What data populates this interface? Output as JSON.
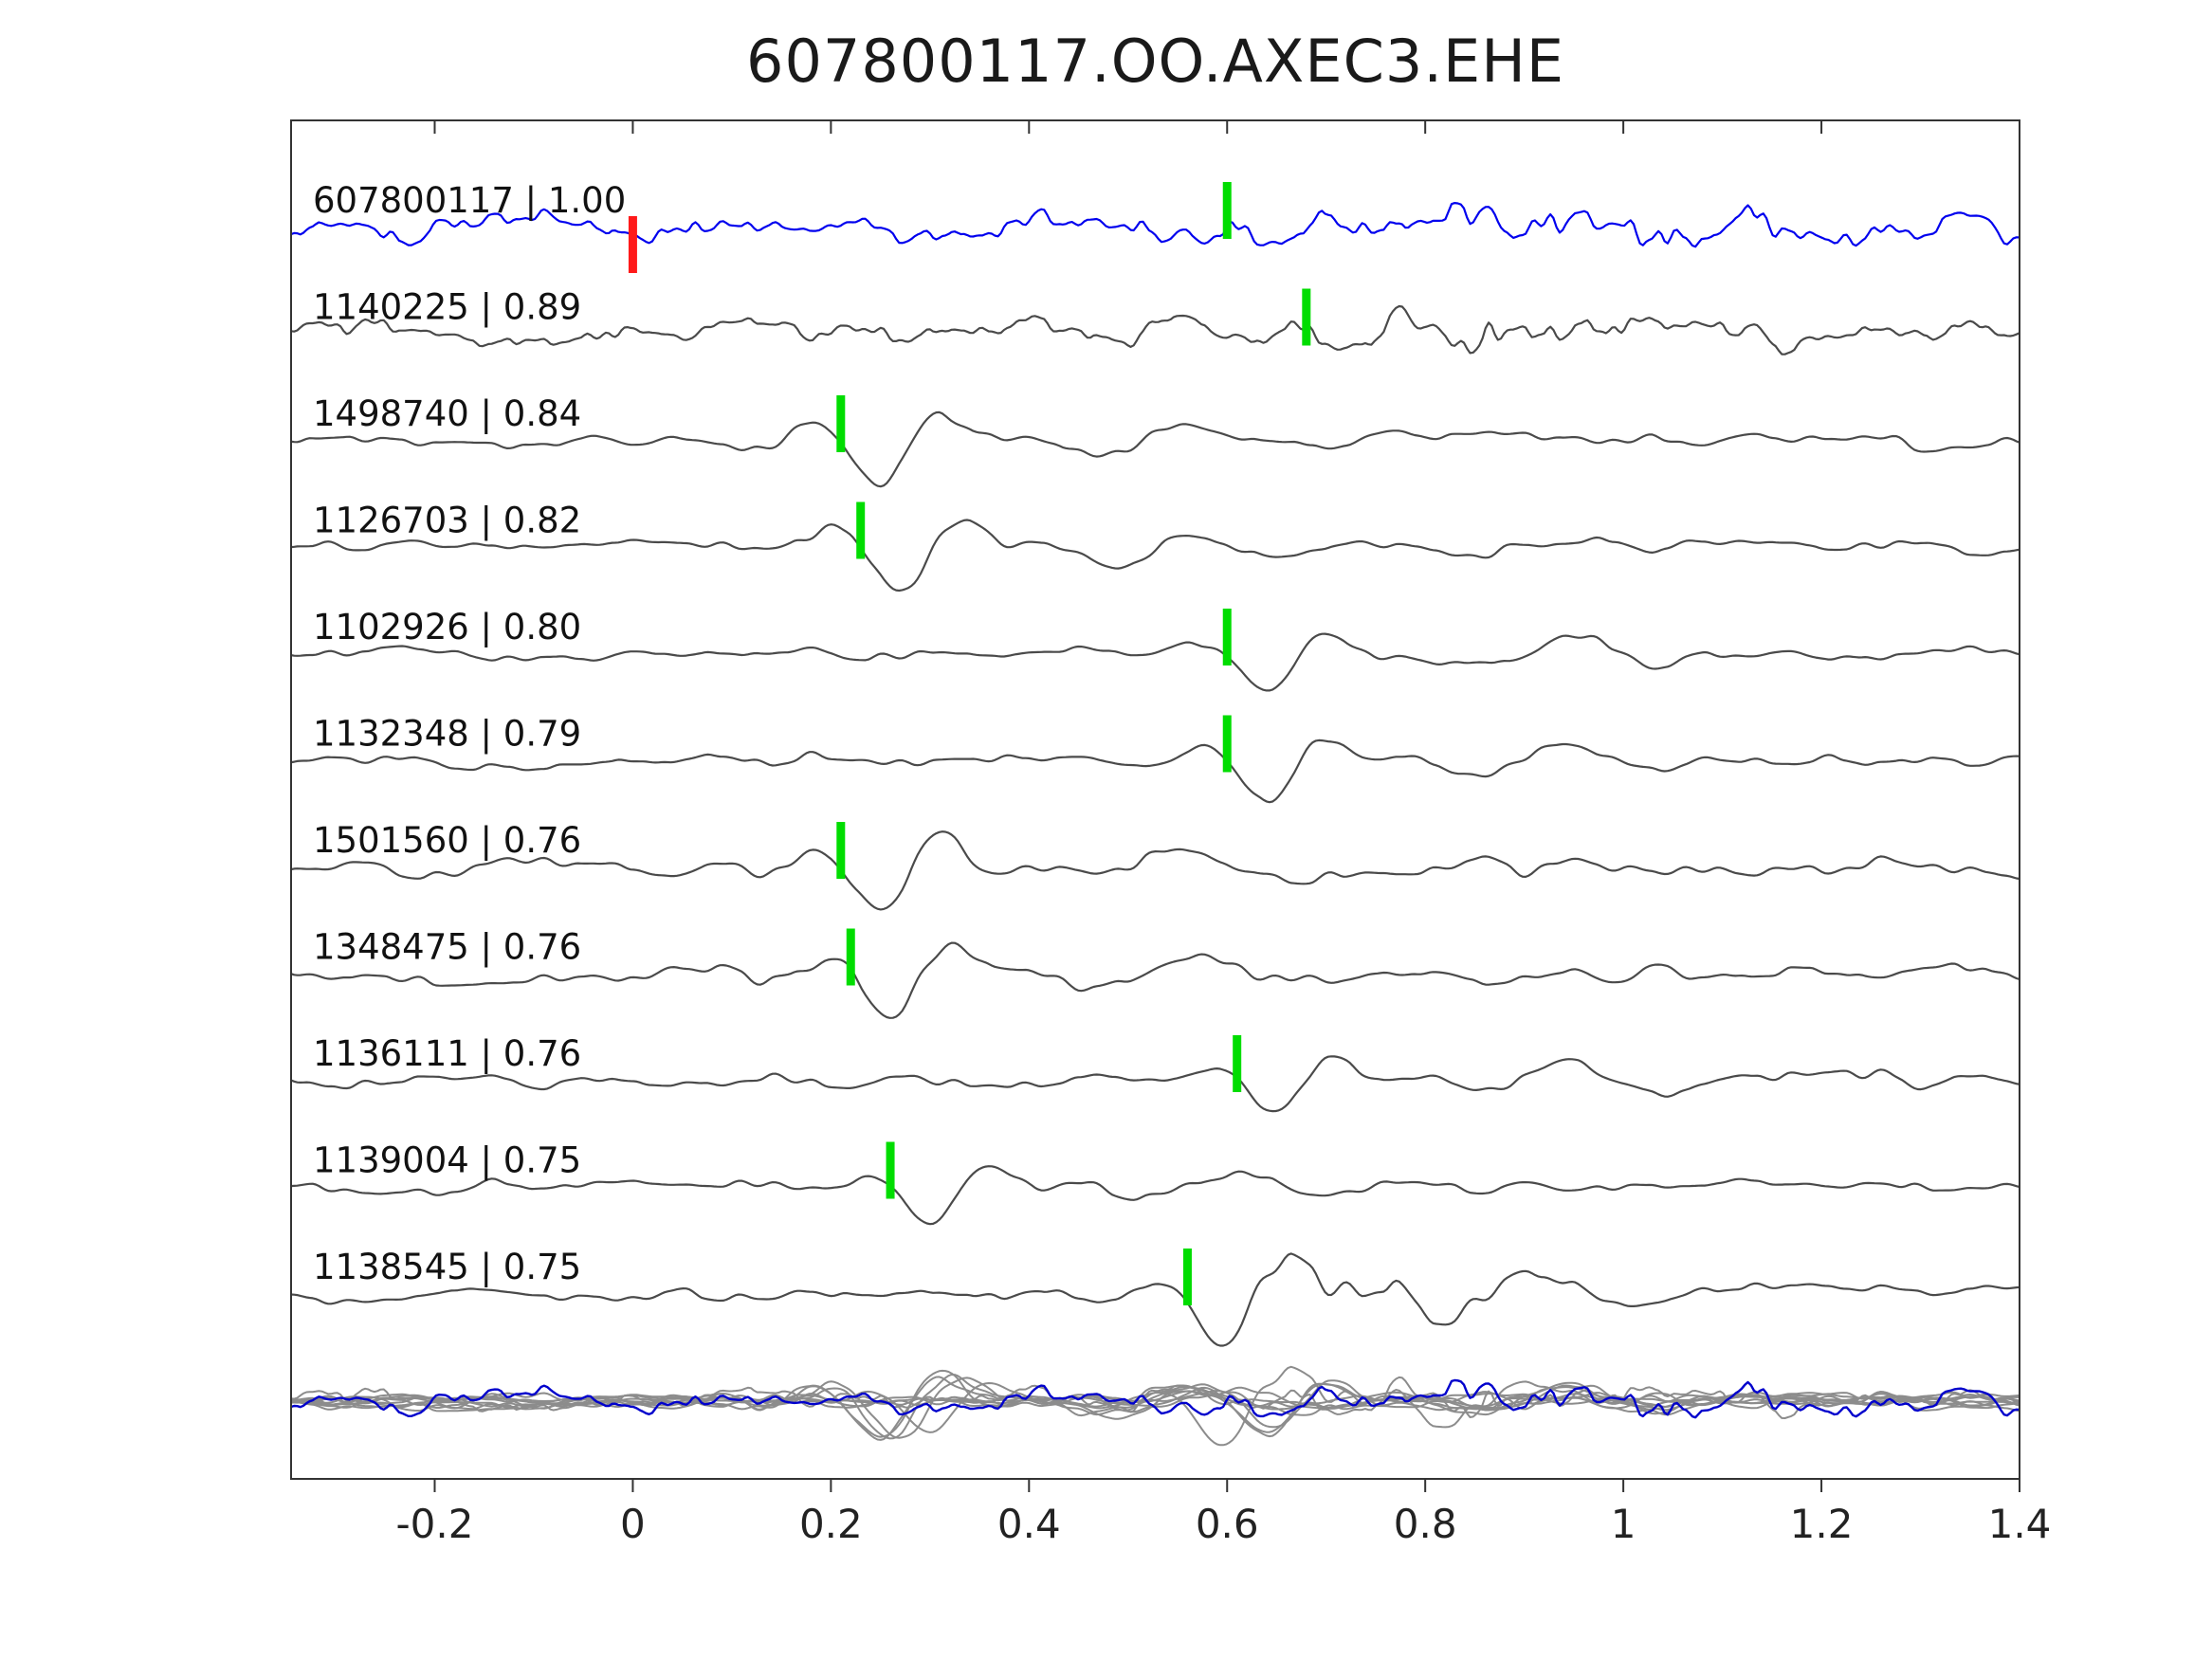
{
  "title": "607800117.OO.AXEC3.EHE",
  "chart_data": {
    "type": "line",
    "title": "607800117.OO.AXEC3.EHE",
    "xlabel": "",
    "ylabel": "",
    "grid": false,
    "legend": "none",
    "xlim": [
      -0.345,
      1.4
    ],
    "x_ticks": [
      -0.2,
      0,
      0.2,
      0.4,
      0.6,
      0.8,
      1.0,
      1.2,
      1.4
    ],
    "x_tick_labels": [
      "-0.2",
      "0",
      "0.2",
      "0.4",
      "0.6",
      "0.8",
      "1",
      "1.2",
      "1.4"
    ],
    "colors": {
      "template_trace": "#0000ee",
      "detection_trace": "#4a4a4a",
      "pick_green": "#00dd00",
      "pick_red": "#ff1a1a",
      "overlay_gray": "#8c8c8c",
      "overlay_blue": "#0000cc",
      "axis": "#333333"
    },
    "series": [
      {
        "id": "607800117",
        "corr": "1.00",
        "label": "607800117 | 1.00",
        "role": "template",
        "picks": [
          {
            "x": 0.0,
            "color": "#ff1a1a"
          },
          {
            "x": 0.6,
            "color": "#00dd00"
          }
        ],
        "seed": 3,
        "noise_amp": 13,
        "hf": true,
        "boost": {
          "center": 0.88,
          "width": 0.33,
          "gain": 1.0
        },
        "event": {
          "x": 0.6,
          "amp": 18
        }
      },
      {
        "id": "1140225",
        "corr": "0.89",
        "label": "1140225 | 0.89",
        "role": "detection",
        "picks": [
          {
            "x": 0.68,
            "color": "#00dd00"
          }
        ],
        "seed": 7,
        "noise_amp": 10,
        "hf": true,
        "boost": {
          "center": 0.85,
          "width": 0.3,
          "gain": 0.9
        },
        "event": {
          "x": 0.68,
          "amp": 32
        }
      },
      {
        "id": "1498740",
        "corr": "0.84",
        "label": "1498740 | 0.84",
        "role": "detection",
        "picks": [
          {
            "x": 0.21,
            "color": "#00dd00"
          }
        ],
        "seed": 11,
        "noise_amp": 8,
        "hf": false,
        "boost": null,
        "event": {
          "x": 0.21,
          "amp": 42
        }
      },
      {
        "id": "1126703",
        "corr": "0.82",
        "label": "1126703 | 0.82",
        "role": "detection",
        "picks": [
          {
            "x": 0.23,
            "color": "#00dd00"
          }
        ],
        "seed": 13,
        "noise_amp": 8,
        "hf": false,
        "boost": null,
        "event": {
          "x": 0.23,
          "amp": 45
        }
      },
      {
        "id": "1102926",
        "corr": "0.80",
        "label": "1102926 | 0.80",
        "role": "detection",
        "picks": [
          {
            "x": 0.6,
            "color": "#00dd00"
          }
        ],
        "seed": 17,
        "noise_amp": 7,
        "hf": false,
        "boost": null,
        "event": {
          "x": 0.6,
          "amp": 40
        }
      },
      {
        "id": "1132348",
        "corr": "0.79",
        "label": "1132348 | 0.79",
        "role": "detection",
        "picks": [
          {
            "x": 0.6,
            "color": "#00dd00"
          }
        ],
        "seed": 19,
        "noise_amp": 7,
        "hf": false,
        "boost": null,
        "event": {
          "x": 0.6,
          "amp": 38
        }
      },
      {
        "id": "1501560",
        "corr": "0.76",
        "label": "1501560 | 0.76",
        "role": "detection",
        "picks": [
          {
            "x": 0.21,
            "color": "#00dd00"
          }
        ],
        "seed": 23,
        "noise_amp": 9,
        "hf": false,
        "boost": null,
        "event": {
          "x": 0.21,
          "amp": 40
        }
      },
      {
        "id": "1348475",
        "corr": "0.76",
        "label": "1348475 | 0.76",
        "role": "detection",
        "picks": [
          {
            "x": 0.22,
            "color": "#00dd00"
          }
        ],
        "seed": 29,
        "noise_amp": 9,
        "hf": false,
        "boost": null,
        "event": {
          "x": 0.22,
          "amp": 42
        }
      },
      {
        "id": "1136111",
        "corr": "0.76",
        "label": "1136111 | 0.76",
        "role": "detection",
        "picks": [
          {
            "x": 0.61,
            "color": "#00dd00"
          }
        ],
        "seed": 31,
        "noise_amp": 8,
        "hf": false,
        "boost": null,
        "event": {
          "x": 0.61,
          "amp": 40
        }
      },
      {
        "id": "1139004",
        "corr": "0.75",
        "label": "1139004 | 0.75",
        "role": "detection",
        "picks": [
          {
            "x": 0.26,
            "color": "#00dd00"
          }
        ],
        "seed": 37,
        "noise_amp": 7,
        "hf": false,
        "boost": null,
        "event": {
          "x": 0.26,
          "amp": 38
        }
      },
      {
        "id": "1138545",
        "corr": "0.75",
        "label": "1138545 | 0.75",
        "role": "detection",
        "picks": [
          {
            "x": 0.56,
            "color": "#00dd00"
          }
        ],
        "seed": 41,
        "noise_amp": 8,
        "hf": false,
        "boost": {
          "center": 0.75,
          "width": 0.18,
          "gain": 1.5
        },
        "event": {
          "x": 0.56,
          "amp": 45
        }
      }
    ],
    "overlay": {
      "description": "all traces superimposed on one baseline, detections gray, template blue",
      "amp_scale": 0.85
    }
  }
}
